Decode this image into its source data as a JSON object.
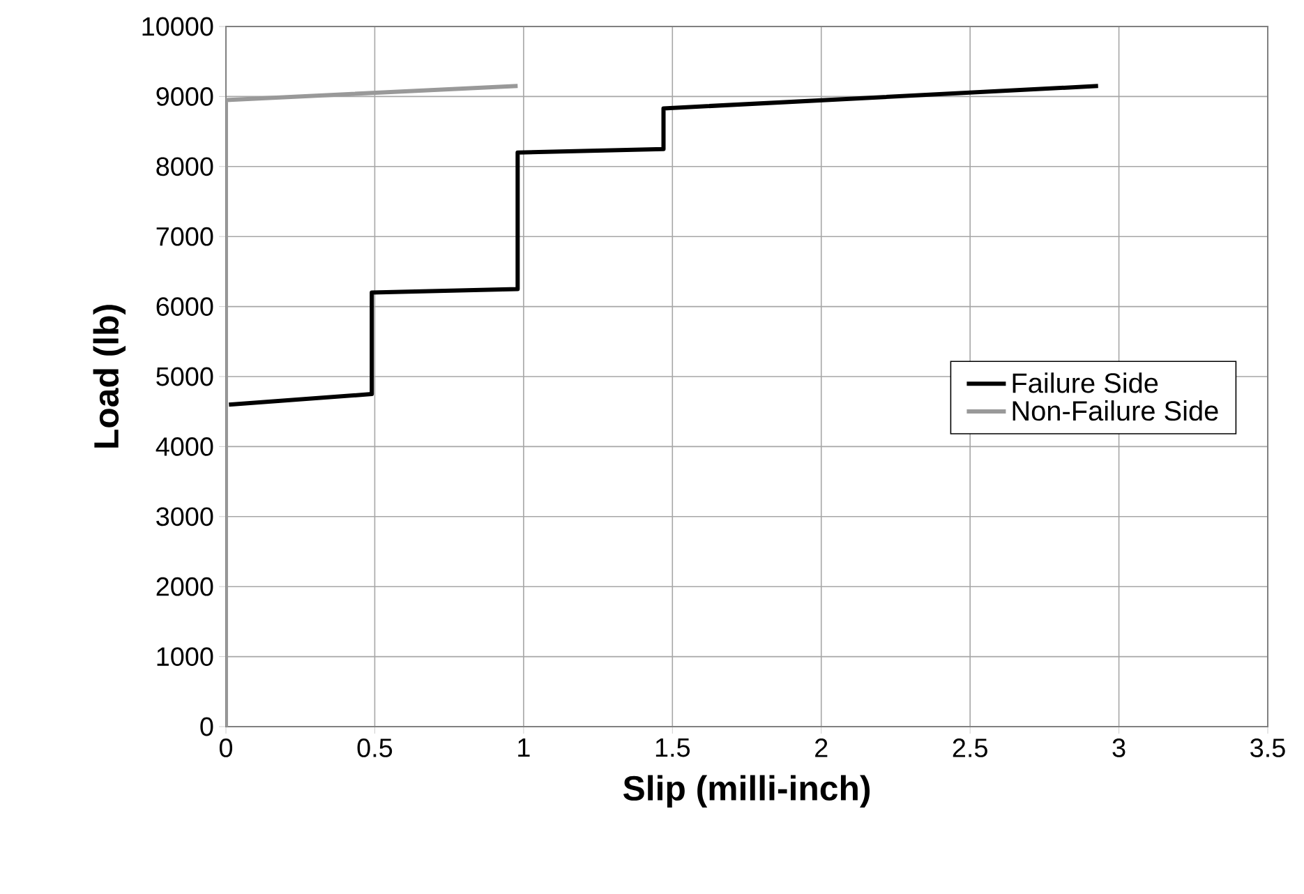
{
  "chart_data": {
    "type": "line",
    "xlabel": "Slip (milli-inch)",
    "ylabel": "Load (lb)",
    "xlim": [
      0,
      3.5
    ],
    "xticks": [
      0,
      0.5,
      1,
      1.5,
      2,
      2.5,
      3,
      3.5
    ],
    "ylim": [
      0,
      10000
    ],
    "yticks": [
      0,
      1000,
      2000,
      3000,
      4000,
      5000,
      6000,
      7000,
      8000,
      9000,
      10000
    ],
    "series": [
      {
        "name": "Failure Side",
        "color": "#000000",
        "x": [
          0.01,
          0.49,
          0.49,
          0.98,
          0.98,
          1.47,
          1.47,
          2.93
        ],
        "values": [
          4600,
          4750,
          6200,
          6250,
          8200,
          8250,
          8830,
          9150
        ]
      },
      {
        "name": "Non-Failure Side",
        "color": "#999999",
        "x": [
          0,
          0,
          0.98
        ],
        "values": [
          0,
          8950,
          9150
        ]
      }
    ],
    "grid": true,
    "legend": "right",
    "marker": "none",
    "line_style": "solid"
  }
}
